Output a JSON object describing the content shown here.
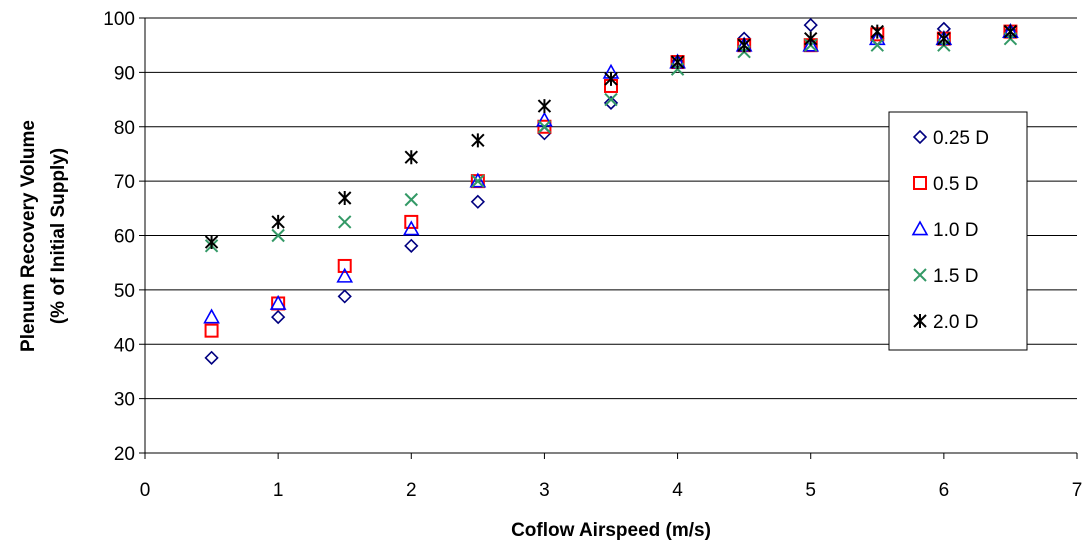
{
  "chart_data": {
    "type": "scatter",
    "title": "",
    "xlabel": "Coflow Airspeed (m/s)",
    "ylabel": "Plenum Recovery Volume",
    "ylabel_sub": "(% of Initial Supply)",
    "xlim": [
      0,
      7
    ],
    "ylim": [
      20,
      100
    ],
    "xticks": [
      0,
      1,
      2,
      3,
      4,
      5,
      6,
      7
    ],
    "yticks": [
      20,
      30,
      40,
      50,
      60,
      70,
      80,
      90,
      100
    ],
    "grid": "horizontal",
    "legend_position": "right",
    "x": [
      0.5,
      1.0,
      1.5,
      2.0,
      2.5,
      3.0,
      3.5,
      4.0,
      4.5,
      5.0,
      5.5,
      6.0,
      6.5
    ],
    "series": [
      {
        "name": "0.25 D",
        "marker": "diamond",
        "color": "#000080",
        "values": [
          37.5,
          45,
          48.8,
          58.1,
          66.2,
          78.8,
          84.4,
          91.9,
          96.2,
          98.7,
          96.2,
          98.0,
          97.5
        ]
      },
      {
        "name": "0.5 D",
        "marker": "square",
        "color": "#ff0000",
        "values": [
          42.5,
          47.5,
          54.4,
          62.5,
          70.0,
          80.0,
          87.5,
          91.9,
          95.0,
          95.0,
          97.0,
          96.2,
          97.5
        ]
      },
      {
        "name": "1.0 D",
        "marker": "triangle",
        "color": "#0000ff",
        "values": [
          45.0,
          47.5,
          52.5,
          61.2,
          70.0,
          81.2,
          90.0,
          91.9,
          95.0,
          95.0,
          96.2,
          96.2,
          97.5
        ]
      },
      {
        "name": "1.5 D",
        "marker": "x",
        "color": "#339966",
        "values": [
          58.1,
          60.0,
          62.5,
          66.6,
          70.0,
          80.0,
          85.0,
          90.6,
          93.8,
          95.0,
          95.0,
          95.0,
          96.2
        ]
      },
      {
        "name": "2.0 D",
        "marker": "star",
        "color": "#000000",
        "values": [
          58.8,
          62.5,
          66.9,
          74.4,
          77.5,
          83.8,
          88.8,
          91.9,
          95.0,
          96.2,
          97.5,
          96.2,
          97.5
        ]
      }
    ]
  }
}
